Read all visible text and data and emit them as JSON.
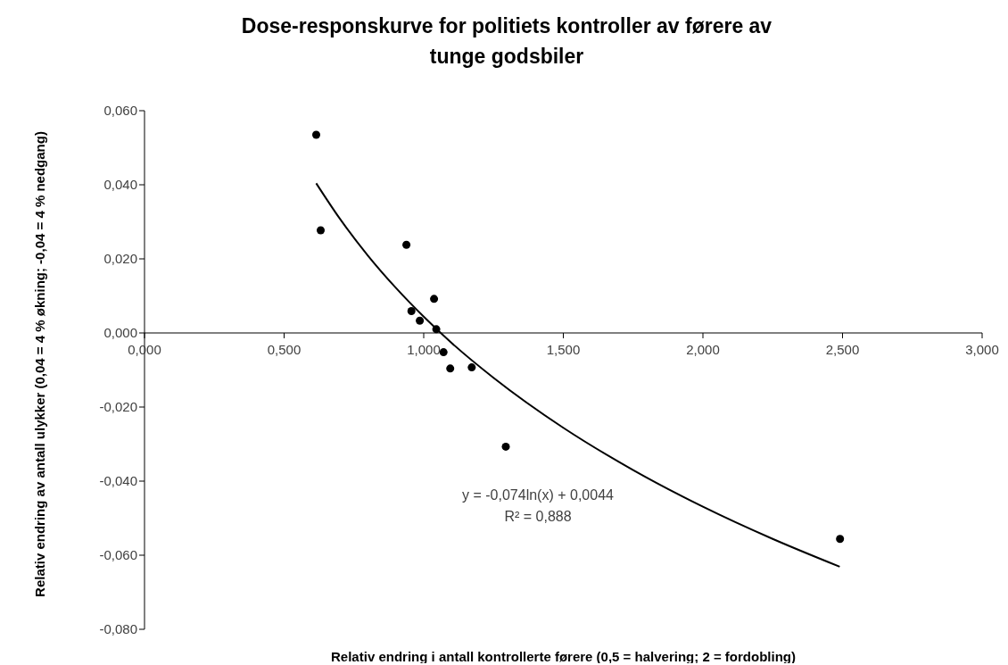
{
  "chart_data": {
    "type": "scatter",
    "title": "Dose-responskurve for politiets kontroller av førere av tunge godsbiler",
    "xlabel": "Relativ endring i antall kontrollerte førere (0,5 = halvering; 2 = fordobling)",
    "ylabel": "Relativ endring av antall ulykker (0,04 = 4 % økning; -0,04 = 4 % nedgang)",
    "xlim": [
      0,
      3
    ],
    "xticks": [
      {
        "value": 0,
        "label": "0,000"
      },
      {
        "value": 0.5,
        "label": "0,500"
      },
      {
        "value": 1,
        "label": "1,000"
      },
      {
        "value": 1.5,
        "label": "1,500"
      },
      {
        "value": 2,
        "label": "2,000"
      },
      {
        "value": 2.5,
        "label": "2,500"
      },
      {
        "value": 3,
        "label": "3,000"
      }
    ],
    "ylim": [
      -0.08,
      0.06
    ],
    "yticks": [
      {
        "value": -0.08,
        "label": "-0,080"
      },
      {
        "value": -0.06,
        "label": "-0,060"
      },
      {
        "value": -0.04,
        "label": "-0,040"
      },
      {
        "value": -0.02,
        "label": "-0,020"
      },
      {
        "value": 0,
        "label": "0,000"
      },
      {
        "value": 0.02,
        "label": "0,020"
      },
      {
        "value": 0.04,
        "label": "0,040"
      },
      {
        "value": 0.06,
        "label": "0,060"
      }
    ],
    "series": [
      {
        "color": "#000000",
        "marker": "circle",
        "x": [
          0.615,
          0.631,
          0.938,
          1.037,
          0.956,
          0.986,
          1.045,
          1.071,
          1.095,
          1.172,
          1.294,
          2.491
        ],
        "values": [
          0.0535,
          0.0277,
          0.0238,
          0.0092,
          0.0059,
          0.0033,
          0.001,
          -0.0052,
          -0.0096,
          -0.0093,
          -0.0307,
          -0.0556
        ]
      },
      {
        "type": "line",
        "color": "#000000",
        "x": [
          0.615,
          0.7,
          0.8,
          0.9,
          1.0,
          1.1,
          1.25,
          1.5,
          1.75,
          2.0,
          2.25,
          2.49
        ],
        "values": [
          0.0404,
          0.0308,
          0.0209,
          0.0122,
          0.0044,
          -0.0027,
          -0.0121,
          -0.0256,
          -0.037,
          -0.0469,
          -0.0556,
          -0.0631
        ]
      }
    ],
    "grid": false,
    "annotations": [
      "y = -0,074ln(x) + 0,0044",
      "R² = 0,888"
    ]
  }
}
